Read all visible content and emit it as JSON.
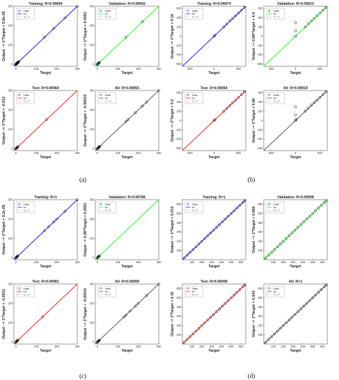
{
  "colors": {
    "training": "#0000ff",
    "validation": "#00ff00",
    "test": "#ff0000",
    "all": "#444444",
    "data": "#000000"
  },
  "legend": [
    "Data",
    "Fit",
    "Y = T"
  ],
  "chart_data": [
    {
      "figure": "(a)",
      "type": "scatter",
      "title": "Training: R=0.99994",
      "xlabel": "Target",
      "ylabel": "Output ~= 1*Target + 6.8e-05",
      "fit": "training",
      "xlim": [
        -10,
        300
      ],
      "ylim": [
        -10,
        300
      ],
      "xticks": [
        0,
        100,
        200,
        300
      ],
      "yticks": [
        0,
        100,
        200,
        300
      ],
      "x": [
        0,
        1,
        2,
        3,
        4,
        5,
        6,
        7,
        8,
        9,
        10,
        12,
        15,
        140,
        185,
        240,
        300
      ],
      "y": [
        0,
        1,
        2,
        3,
        4,
        5,
        6,
        7,
        8,
        9,
        10,
        12,
        15,
        140,
        185,
        240,
        300
      ]
    },
    {
      "figure": "(a)",
      "type": "scatter",
      "title": "Validation: R=0.99992",
      "xlabel": "Target",
      "ylabel": "Output ~= 1*Target + 0.0061",
      "fit": "validation",
      "xlim": [
        -10,
        300
      ],
      "ylim": [
        -10,
        300
      ],
      "xticks": [
        0,
        100,
        200,
        300
      ],
      "yticks": [
        0,
        100,
        200,
        300
      ],
      "x": [
        0,
        2,
        4,
        6,
        8,
        10,
        140,
        220
      ],
      "y": [
        0,
        2,
        4,
        6,
        8,
        10,
        140,
        220
      ]
    },
    {
      "figure": "(a)",
      "type": "scatter",
      "title": "Test: R=0.99964",
      "xlabel": "Target",
      "ylabel": "Output ~= 1*Target + -0.012",
      "fit": "test",
      "xlim": [
        -10,
        300
      ],
      "ylim": [
        -10,
        300
      ],
      "xticks": [
        0,
        100,
        200,
        300
      ],
      "yticks": [
        0,
        100,
        200,
        300
      ],
      "x": [
        0,
        2,
        4,
        6,
        8,
        10,
        150
      ],
      "y": [
        0,
        2,
        4,
        6,
        8,
        10,
        150
      ]
    },
    {
      "figure": "(a)",
      "type": "scatter",
      "title": "All: R=0.99993",
      "xlabel": "Target",
      "ylabel": "Output ~= 1*Target + -0.00023",
      "fit": "all",
      "xlim": [
        -10,
        300
      ],
      "ylim": [
        -10,
        300
      ],
      "xticks": [
        0,
        100,
        200,
        300
      ],
      "yticks": [
        0,
        100,
        200,
        300
      ],
      "x": [
        0,
        2,
        4,
        6,
        8,
        10,
        12,
        140,
        150,
        185,
        220,
        240,
        300
      ],
      "y": [
        0,
        2,
        4,
        6,
        8,
        10,
        12,
        140,
        150,
        185,
        220,
        240,
        300
      ]
    },
    {
      "figure": "(b)",
      "type": "scatter",
      "title": "Training: R=0.99974",
      "xlabel": "Target",
      "ylabel": "Output ~= 1*Target + 0.19",
      "fit": "training",
      "xlim": [
        -650,
        650
      ],
      "ylim": [
        -650,
        650
      ],
      "xticks": [
        -500,
        0,
        500
      ],
      "yticks": [
        -600,
        -400,
        -200,
        0,
        200,
        400,
        600
      ],
      "x": [
        0,
        20,
        200,
        260,
        320,
        380,
        440,
        500,
        560,
        620
      ],
      "y": [
        0,
        25,
        205,
        270,
        335,
        390,
        445,
        505,
        565,
        625
      ]
    },
    {
      "figure": "(b)",
      "type": "scatter",
      "title": "Validation: R=0.99623",
      "xlabel": "Target",
      "ylabel": "Output ~= 0.99*Target + 4.4",
      "fit": "validation",
      "xlim": [
        -650,
        650
      ],
      "ylim": [
        -650,
        650
      ],
      "xticks": [
        -500,
        0,
        500
      ],
      "yticks": [
        -600,
        -400,
        -200,
        0,
        200,
        400,
        600
      ],
      "x": [
        0,
        0,
        0,
        200,
        260,
        320,
        380,
        440,
        500,
        560,
        620
      ],
      "y": [
        0,
        120,
        300,
        205,
        270,
        330,
        385,
        445,
        505,
        565,
        620
      ]
    },
    {
      "figure": "(b)",
      "type": "scatter",
      "title": "Test: R=0.99964",
      "xlabel": "Target",
      "ylabel": "Output ~= 1*Target + 0.2",
      "fit": "test",
      "xlim": [
        -650,
        650
      ],
      "ylim": [
        -650,
        650
      ],
      "xticks": [
        -500,
        0,
        500
      ],
      "yticks": [
        -600,
        -400,
        -200,
        0,
        200,
        400,
        600
      ],
      "x": [
        0,
        20,
        200,
        260,
        320,
        380,
        440,
        500,
        560,
        620
      ],
      "y": [
        0,
        20,
        200,
        265,
        325,
        385,
        440,
        500,
        560,
        620
      ]
    },
    {
      "figure": "(b)",
      "type": "scatter",
      "title": "All: R=0.99919",
      "xlabel": "Target",
      "ylabel": "Output ~= 1*Target + 0.86",
      "fit": "all",
      "xlim": [
        -650,
        650
      ],
      "ylim": [
        -650,
        650
      ],
      "xticks": [
        -500,
        0,
        500
      ],
      "yticks": [
        -600,
        -400,
        -200,
        0,
        200,
        400,
        600
      ],
      "x": [
        0,
        0,
        0,
        20,
        200,
        260,
        320,
        380,
        440,
        500,
        560,
        620
      ],
      "y": [
        0,
        120,
        300,
        25,
        205,
        270,
        335,
        390,
        445,
        505,
        565,
        625
      ]
    },
    {
      "figure": "(c)",
      "type": "scatter",
      "title": "Training: R=1",
      "xlabel": "Target",
      "ylabel": "Output ~= 1*Target + 3.2e-05",
      "fit": "training",
      "xlim": [
        -10,
        300
      ],
      "ylim": [
        -10,
        300
      ],
      "xticks": [
        0,
        100,
        200,
        300
      ],
      "yticks": [
        0,
        100,
        200,
        300
      ],
      "x": [
        0,
        2,
        4,
        6,
        8,
        10,
        140,
        160,
        185,
        200,
        240,
        300
      ],
      "y": [
        0,
        2,
        4,
        6,
        8,
        10,
        140,
        160,
        185,
        200,
        240,
        300
      ]
    },
    {
      "figure": "(c)",
      "type": "scatter",
      "title": "Validation: R=0.99786",
      "xlabel": "Target",
      "ylabel": "Output ~= 0.99*Target + 0.0061",
      "fit": "validation",
      "xlim": [
        -10,
        300
      ],
      "ylim": [
        -10,
        300
      ],
      "xticks": [
        0,
        100,
        200,
        300
      ],
      "yticks": [
        0,
        100,
        200,
        300
      ],
      "x": [
        0,
        2,
        4,
        6,
        8,
        10
      ],
      "y": [
        0,
        2,
        4,
        6,
        8,
        10
      ]
    },
    {
      "figure": "(c)",
      "type": "scatter",
      "title": "Test: R=0.99981",
      "xlabel": "Target",
      "ylabel": "Output ~= 1*Target + -0.0031",
      "fit": "test",
      "xlim": [
        -10,
        300
      ],
      "ylim": [
        -10,
        300
      ],
      "xticks": [
        0,
        100,
        200,
        300
      ],
      "yticks": [
        0,
        100,
        200,
        300
      ],
      "x": [
        0,
        2,
        4,
        6,
        8,
        10,
        130
      ],
      "y": [
        0,
        2,
        4,
        6,
        8,
        10,
        130
      ]
    },
    {
      "figure": "(c)",
      "type": "scatter",
      "title": "All: R=0.99999",
      "xlabel": "Target",
      "ylabel": "Output ~= 1*Target + -0.00031",
      "fit": "all",
      "xlim": [
        -10,
        300
      ],
      "ylim": [
        -10,
        300
      ],
      "xticks": [
        0,
        100,
        200,
        300
      ],
      "yticks": [
        0,
        100,
        200,
        300
      ],
      "x": [
        0,
        2,
        4,
        6,
        8,
        10,
        130,
        140,
        160,
        185,
        200,
        240,
        300
      ],
      "y": [
        0,
        2,
        4,
        6,
        8,
        10,
        130,
        140,
        160,
        185,
        200,
        240,
        300
      ]
    },
    {
      "figure": "(d)",
      "type": "scatter",
      "title": "Training: R=1",
      "xlabel": "Target",
      "ylabel": "Output ~= 1*Target + 0.013",
      "fit": "training",
      "xlim": [
        0,
        650
      ],
      "ylim": [
        0,
        650
      ],
      "xticks": [
        100,
        200,
        300,
        400,
        500,
        600
      ],
      "yticks": [
        100,
        200,
        300,
        400,
        500,
        600
      ],
      "x": [
        20,
        50,
        80,
        110,
        140,
        170,
        200,
        230,
        260,
        290,
        320,
        350,
        380,
        410,
        440,
        470,
        500,
        530,
        560,
        590,
        620,
        640
      ],
      "y": [
        20,
        50,
        80,
        110,
        140,
        170,
        200,
        230,
        260,
        290,
        320,
        350,
        380,
        410,
        440,
        470,
        500,
        530,
        560,
        590,
        620,
        640
      ]
    },
    {
      "figure": "(d)",
      "type": "scatter",
      "title": "Validation: R=0.99999",
      "xlabel": "Target",
      "ylabel": "Output ~= 1*Target + 0.066",
      "fit": "validation",
      "xlim": [
        0,
        650
      ],
      "ylim": [
        0,
        650
      ],
      "xticks": [
        100,
        200,
        300,
        400,
        500,
        600
      ],
      "yticks": [
        100,
        200,
        300,
        400,
        500,
        600
      ],
      "x": [
        20,
        50,
        80,
        110,
        140,
        170,
        200,
        230,
        260,
        290,
        320,
        350,
        380,
        410,
        440,
        470,
        500,
        530,
        560,
        590,
        620,
        640
      ],
      "y": [
        20,
        50,
        80,
        110,
        140,
        170,
        200,
        230,
        260,
        290,
        320,
        350,
        380,
        410,
        440,
        470,
        500,
        530,
        560,
        590,
        620,
        640
      ]
    },
    {
      "figure": "(d)",
      "type": "scatter",
      "title": "Test: R=0.99999",
      "xlabel": "Target",
      "ylabel": "Output ~= 1*Target + 0.16",
      "fit": "test",
      "xlim": [
        0,
        650
      ],
      "ylim": [
        0,
        650
      ],
      "xticks": [
        100,
        200,
        300,
        400,
        500,
        600
      ],
      "yticks": [
        100,
        200,
        300,
        400,
        500,
        600
      ],
      "x": [
        20,
        50,
        80,
        110,
        140,
        170,
        200,
        230,
        260,
        290,
        320,
        350,
        380,
        410,
        440,
        470,
        500,
        530,
        560,
        590,
        620,
        640
      ],
      "y": [
        20,
        50,
        80,
        110,
        140,
        170,
        200,
        230,
        260,
        290,
        320,
        350,
        380,
        410,
        440,
        470,
        500,
        530,
        560,
        590,
        620,
        640
      ]
    },
    {
      "figure": "(d)",
      "type": "scatter",
      "title": "All: R=1",
      "xlabel": "Target",
      "ylabel": "Output ~= 1*Target + 0.043",
      "fit": "all",
      "xlim": [
        0,
        650
      ],
      "ylim": [
        0,
        650
      ],
      "xticks": [
        100,
        200,
        300,
        400,
        500,
        600
      ],
      "yticks": [
        100,
        200,
        300,
        400,
        500,
        600
      ],
      "x": [
        20,
        50,
        80,
        110,
        140,
        170,
        200,
        230,
        260,
        290,
        320,
        350,
        380,
        410,
        440,
        470,
        500,
        530,
        560,
        590,
        620,
        640
      ],
      "y": [
        20,
        50,
        80,
        110,
        140,
        170,
        200,
        230,
        260,
        290,
        320,
        350,
        380,
        410,
        440,
        470,
        500,
        530,
        560,
        590,
        620,
        640
      ]
    }
  ]
}
